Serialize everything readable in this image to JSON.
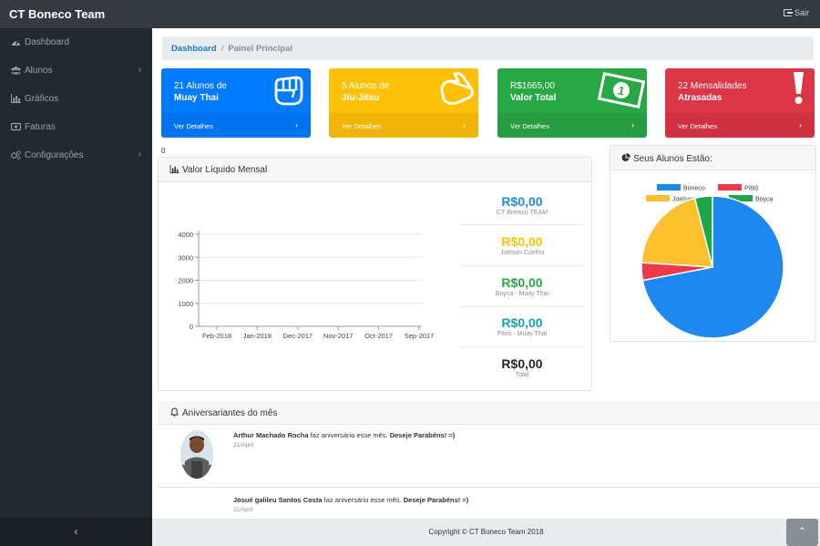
{
  "app": {
    "brand": "CT Boneco Team",
    "logout_label": "Sair"
  },
  "sidebar": {
    "items": [
      {
        "label": "Dashboard",
        "icon": "dashboard-icon"
      },
      {
        "label": "Alunos",
        "icon": "users-icon",
        "chevron": "›"
      },
      {
        "label": "Gráficos",
        "icon": "bar-chart-icon"
      },
      {
        "label": "Faturas",
        "icon": "invoice-icon"
      },
      {
        "label": "Configurações",
        "icon": "gears-icon",
        "chevron": "›"
      }
    ],
    "toggle": "‹"
  },
  "breadcrumb": {
    "link": "Dashboard",
    "separator": "/",
    "active": "Painel Principal"
  },
  "cards": [
    {
      "line1": "21 Alunos de",
      "line2": "Muay Thai",
      "details": "Ver Detalhes",
      "arrow": "›",
      "color": "#007bff",
      "icon": "fist-icon"
    },
    {
      "line1": "5 Alunos de",
      "line2": "Jiu-Jitsu",
      "details": "Ver Detalhes",
      "arrow": "›",
      "color": "#ffc107",
      "icon": "hand-point-icon"
    },
    {
      "line1": "R$1665,00",
      "line2": "Valor Total",
      "details": "Ver Detalhes",
      "arrow": "›",
      "color": "#28a745",
      "icon": "money-bill-icon"
    },
    {
      "line1": "22 Mensalidades",
      "line2": "Atrasadas",
      "details": "Ver Detalhes",
      "arrow": "›",
      "color": "#dc3545",
      "icon": "exclamation-icon"
    }
  ],
  "stray_zero": "0",
  "line_panel": {
    "title": "Valor Líquido Mensal",
    "stats": [
      {
        "value": "R$0,00",
        "name": "CT Boneco TEAM",
        "color": "#1b8fe0"
      },
      {
        "value": "R$0,00",
        "name": "Joelson Coelho",
        "color": "#ffc107"
      },
      {
        "value": "R$0,00",
        "name": "Boyca - Muay Thai",
        "color": "#28a745"
      },
      {
        "value": "R$0,00",
        "name": "Pititó - Muay Thai",
        "color": "#17a2b8"
      },
      {
        "value": "R$0,00",
        "name": "Total",
        "color": "#212529"
      }
    ]
  },
  "pie_panel": {
    "title": "Seus Alunos Estão:"
  },
  "chart_data": [
    {
      "type": "line",
      "categories": [
        "Feb-2018",
        "Jan-2018",
        "Dec-2017",
        "Nov-2017",
        "Oct-2017",
        "Sep-2017"
      ],
      "series": [],
      "yticks": [
        0,
        1000,
        2000,
        3000,
        4000
      ],
      "ylim": [
        0,
        4000
      ],
      "grid": true
    },
    {
      "type": "pie",
      "labels": [
        "Boneco",
        "Pititó",
        "Joelson Coelho",
        "Boyca"
      ],
      "values": [
        72,
        4,
        20,
        4
      ],
      "colors": [
        "#1e88f0",
        "#ec3a48",
        "#fbc02d",
        "#1fa64a"
      ],
      "legend": "top"
    }
  ],
  "birthdays": {
    "title": "Aniversariantes do mês",
    "entries": [
      {
        "name": "Arthur Machado Rocha",
        "text": " faz aniversário esse mês. ",
        "congrats": "Deseje Parabéns! =)",
        "date": "21/April"
      },
      {
        "name": "Josué galileu Santos Costa",
        "text": " faz aniversário esse mês. ",
        "congrats": "Deseje Parabéns! =)",
        "date": "11/April"
      }
    ]
  },
  "footer": {
    "copyright": "Copyright © CT Boneco Team 2018",
    "scroll_top": "⌃"
  }
}
